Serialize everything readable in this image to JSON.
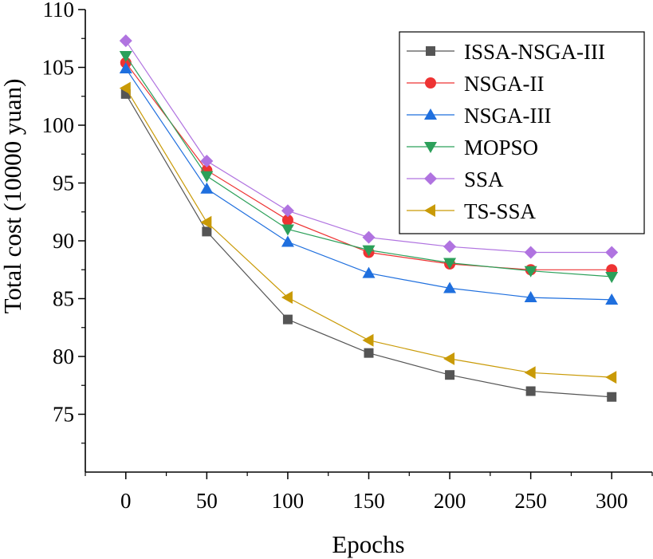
{
  "chart_data": {
    "type": "line",
    "title": "",
    "xlabel": "Epochs",
    "ylabel": "Total cost (10000 yuan)",
    "x": [
      0,
      50,
      100,
      150,
      200,
      250,
      300
    ],
    "xlim": [
      -25,
      325
    ],
    "ylim": [
      70,
      110
    ],
    "xticks": [
      0,
      50,
      100,
      150,
      200,
      250,
      300
    ],
    "yticks": [
      75,
      80,
      85,
      90,
      95,
      100,
      105,
      110
    ],
    "grid": false,
    "legend_position": "top-right",
    "series": [
      {
        "name": "ISSA-NSGA-III",
        "marker": "square",
        "color": "#555555",
        "values": [
          102.7,
          90.8,
          83.2,
          80.3,
          78.4,
          77.0,
          76.5
        ]
      },
      {
        "name": "NSGA-II",
        "marker": "circle",
        "color": "#ee3333",
        "values": [
          105.4,
          96.1,
          91.8,
          89.0,
          88.0,
          87.5,
          87.5
        ]
      },
      {
        "name": "NSGA-III",
        "marker": "triangle-up",
        "color": "#1f6fde",
        "values": [
          104.9,
          94.5,
          89.9,
          87.2,
          85.9,
          85.1,
          84.9
        ]
      },
      {
        "name": "MOPSO",
        "marker": "triangle-down",
        "color": "#2ca05a",
        "values": [
          106.0,
          95.6,
          91.0,
          89.2,
          88.1,
          87.4,
          86.9
        ]
      },
      {
        "name": "SSA",
        "marker": "diamond",
        "color": "#b073e0",
        "values": [
          107.3,
          96.9,
          92.6,
          90.3,
          89.5,
          89.0,
          89.0
        ]
      },
      {
        "name": "TS-SSA",
        "marker": "triangle-left",
        "color": "#c99a06",
        "values": [
          103.2,
          91.6,
          85.1,
          81.4,
          79.8,
          78.6,
          78.2
        ]
      }
    ]
  }
}
